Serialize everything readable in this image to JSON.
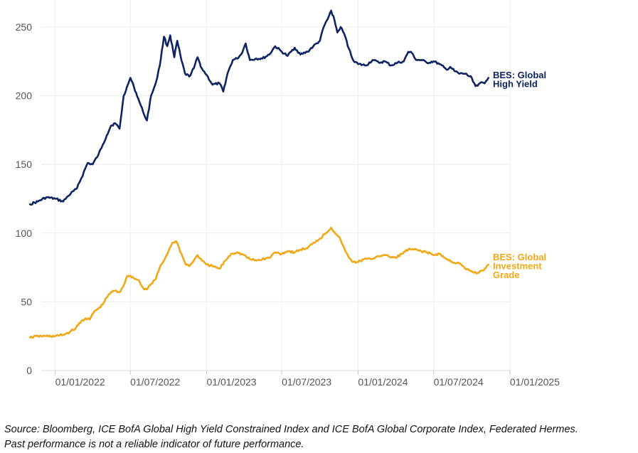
{
  "chart_data": {
    "type": "line",
    "title": "",
    "xlabel": "",
    "ylabel": "",
    "ylim": [
      0,
      265
    ],
    "xlim": [
      "2021-10-25",
      "2025-01-01"
    ],
    "grid": true,
    "yticks": [
      "0",
      "50",
      "100",
      "150",
      "200",
      "250"
    ],
    "xticks": [
      "01/01/2022",
      "01/07/2022",
      "01/01/2023",
      "01/07/2023",
      "01/01/2024",
      "01/07/2024",
      "01/01/2025"
    ],
    "series": [
      {
        "name_lines": [
          "BES: Global",
          "High Yield"
        ],
        "color": "#0e2463",
        "points": [
          [
            "2021-11-01",
            121
          ],
          [
            "2021-11-20",
            123
          ],
          [
            "2021-12-10",
            126
          ],
          [
            "2022-01-01",
            125
          ],
          [
            "2022-01-20",
            123
          ],
          [
            "2022-02-01",
            127
          ],
          [
            "2022-02-20",
            132
          ],
          [
            "2022-03-05",
            140
          ],
          [
            "2022-03-20",
            151
          ],
          [
            "2022-04-01",
            150
          ],
          [
            "2022-04-15",
            157
          ],
          [
            "2022-04-25",
            164
          ],
          [
            "2022-05-05",
            171
          ],
          [
            "2022-05-15",
            178
          ],
          [
            "2022-05-25",
            180
          ],
          [
            "2022-06-05",
            176
          ],
          [
            "2022-06-15",
            200
          ],
          [
            "2022-06-25",
            208
          ],
          [
            "2022-07-01",
            213
          ],
          [
            "2022-07-10",
            206
          ],
          [
            "2022-07-20",
            198
          ],
          [
            "2022-08-01",
            188
          ],
          [
            "2022-08-10",
            182
          ],
          [
            "2022-08-20",
            200
          ],
          [
            "2022-09-01",
            210
          ],
          [
            "2022-09-10",
            222
          ],
          [
            "2022-09-20",
            243
          ],
          [
            "2022-09-28",
            236
          ],
          [
            "2022-10-05",
            244
          ],
          [
            "2022-10-15",
            228
          ],
          [
            "2022-10-22",
            240
          ],
          [
            "2022-11-01",
            226
          ],
          [
            "2022-11-10",
            216
          ],
          [
            "2022-11-20",
            214
          ],
          [
            "2022-12-01",
            220
          ],
          [
            "2022-12-10",
            228
          ],
          [
            "2022-12-20",
            220
          ],
          [
            "2023-01-01",
            215
          ],
          [
            "2023-01-15",
            208
          ],
          [
            "2023-02-01",
            209
          ],
          [
            "2023-02-10",
            203
          ],
          [
            "2023-02-20",
            216
          ],
          [
            "2023-03-05",
            226
          ],
          [
            "2023-03-15",
            227
          ],
          [
            "2023-03-25",
            230
          ],
          [
            "2023-04-05",
            238
          ],
          [
            "2023-04-15",
            226
          ],
          [
            "2023-05-01",
            227
          ],
          [
            "2023-05-15",
            227
          ],
          [
            "2023-06-01",
            230
          ],
          [
            "2023-06-15",
            236
          ],
          [
            "2023-07-01",
            232
          ],
          [
            "2023-07-15",
            229
          ],
          [
            "2023-08-01",
            235
          ],
          [
            "2023-08-15",
            230
          ],
          [
            "2023-09-01",
            232
          ],
          [
            "2023-09-15",
            236
          ],
          [
            "2023-10-01",
            240
          ],
          [
            "2023-10-10",
            250
          ],
          [
            "2023-10-20",
            256
          ],
          [
            "2023-10-28",
            262
          ],
          [
            "2023-11-05",
            255
          ],
          [
            "2023-11-12",
            246
          ],
          [
            "2023-11-20",
            250
          ],
          [
            "2023-12-01",
            243
          ],
          [
            "2023-12-10",
            234
          ],
          [
            "2023-12-20",
            226
          ],
          [
            "2024-01-01",
            223
          ],
          [
            "2024-01-20",
            222
          ],
          [
            "2024-02-05",
            226
          ],
          [
            "2024-02-20",
            224
          ],
          [
            "2024-03-05",
            225
          ],
          [
            "2024-03-20",
            222
          ],
          [
            "2024-04-05",
            224
          ],
          [
            "2024-04-20",
            225
          ],
          [
            "2024-05-01",
            232
          ],
          [
            "2024-05-10",
            231
          ],
          [
            "2024-05-20",
            226
          ],
          [
            "2024-06-01",
            226
          ],
          [
            "2024-06-15",
            224
          ],
          [
            "2024-07-01",
            225
          ],
          [
            "2024-07-15",
            223
          ],
          [
            "2024-08-01",
            219
          ],
          [
            "2024-08-10",
            221
          ],
          [
            "2024-08-20",
            218
          ],
          [
            "2024-09-01",
            216
          ],
          [
            "2024-09-15",
            216
          ],
          [
            "2024-10-01",
            213
          ],
          [
            "2024-10-10",
            207
          ],
          [
            "2024-10-20",
            209
          ],
          [
            "2024-11-01",
            209
          ],
          [
            "2024-11-10",
            213
          ]
        ]
      },
      {
        "name_lines": [
          "BES: Global",
          "Investment",
          "Grade"
        ],
        "color": "#f0a818",
        "points": [
          [
            "2021-11-01",
            24
          ],
          [
            "2021-11-20",
            25
          ],
          [
            "2021-12-10",
            25
          ],
          [
            "2022-01-01",
            25
          ],
          [
            "2022-01-20",
            26
          ],
          [
            "2022-02-05",
            28
          ],
          [
            "2022-02-20",
            31
          ],
          [
            "2022-03-05",
            36
          ],
          [
            "2022-03-15",
            38
          ],
          [
            "2022-03-25",
            37
          ],
          [
            "2022-04-05",
            43
          ],
          [
            "2022-04-15",
            45
          ],
          [
            "2022-04-25",
            48
          ],
          [
            "2022-05-05",
            53
          ],
          [
            "2022-05-15",
            57
          ],
          [
            "2022-05-25",
            58
          ],
          [
            "2022-06-05",
            57
          ],
          [
            "2022-06-15",
            62
          ],
          [
            "2022-06-22",
            68
          ],
          [
            "2022-07-01",
            69
          ],
          [
            "2022-07-10",
            67
          ],
          [
            "2022-07-20",
            66
          ],
          [
            "2022-08-01",
            60
          ],
          [
            "2022-08-10",
            59
          ],
          [
            "2022-08-20",
            63
          ],
          [
            "2022-09-01",
            67
          ],
          [
            "2022-09-10",
            75
          ],
          [
            "2022-09-20",
            80
          ],
          [
            "2022-10-01",
            87
          ],
          [
            "2022-10-10",
            93
          ],
          [
            "2022-10-20",
            94
          ],
          [
            "2022-11-01",
            85
          ],
          [
            "2022-11-10",
            78
          ],
          [
            "2022-11-20",
            76
          ],
          [
            "2022-12-01",
            80
          ],
          [
            "2022-12-10",
            84
          ],
          [
            "2022-12-20",
            80
          ],
          [
            "2023-01-01",
            77
          ],
          [
            "2023-01-15",
            76
          ],
          [
            "2023-02-01",
            74
          ],
          [
            "2023-02-15",
            80
          ],
          [
            "2023-03-01",
            85
          ],
          [
            "2023-03-15",
            86
          ],
          [
            "2023-04-01",
            84
          ],
          [
            "2023-04-15",
            81
          ],
          [
            "2023-05-01",
            80
          ],
          [
            "2023-05-15",
            81
          ],
          [
            "2023-06-01",
            82
          ],
          [
            "2023-06-15",
            86
          ],
          [
            "2023-07-01",
            85
          ],
          [
            "2023-07-15",
            87
          ],
          [
            "2023-08-01",
            86
          ],
          [
            "2023-08-15",
            88
          ],
          [
            "2023-09-01",
            89
          ],
          [
            "2023-09-15",
            93
          ],
          [
            "2023-10-01",
            96
          ],
          [
            "2023-10-15",
            100
          ],
          [
            "2023-10-28",
            104
          ],
          [
            "2023-11-10",
            99
          ],
          [
            "2023-11-20",
            95
          ],
          [
            "2023-12-01",
            87
          ],
          [
            "2023-12-10",
            82
          ],
          [
            "2023-12-20",
            79
          ],
          [
            "2024-01-01",
            79
          ],
          [
            "2024-01-15",
            81
          ],
          [
            "2024-02-01",
            81
          ],
          [
            "2024-02-15",
            83
          ],
          [
            "2024-03-01",
            84
          ],
          [
            "2024-03-15",
            83
          ],
          [
            "2024-04-01",
            82
          ],
          [
            "2024-04-15",
            85
          ],
          [
            "2024-05-01",
            88
          ],
          [
            "2024-05-15",
            88
          ],
          [
            "2024-06-01",
            87
          ],
          [
            "2024-06-15",
            86
          ],
          [
            "2024-07-01",
            84
          ],
          [
            "2024-07-15",
            85
          ],
          [
            "2024-08-01",
            81
          ],
          [
            "2024-08-15",
            79
          ],
          [
            "2024-09-01",
            78
          ],
          [
            "2024-09-15",
            74
          ],
          [
            "2024-10-01",
            72
          ],
          [
            "2024-10-15",
            71
          ],
          [
            "2024-11-01",
            74
          ],
          [
            "2024-11-10",
            77
          ]
        ]
      }
    ]
  },
  "source_note": {
    "line1": "Source: Bloomberg, ICE BofA Global High Yield Constrained Index and ICE BofA Global Corporate Index, Federated Hermes.",
    "line2": "Past performance is not a reliable indicator of future performance."
  }
}
